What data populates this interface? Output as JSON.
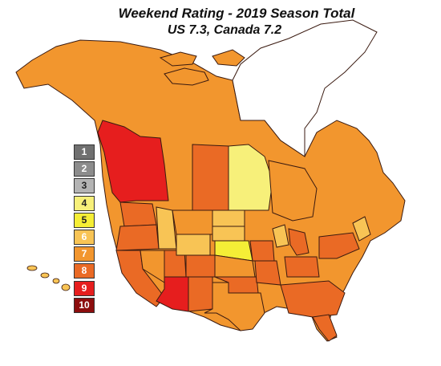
{
  "title": "Weekend Rating - 2019 Season Total",
  "subtitle": "US 7.3, Canada 7.2",
  "colors": {
    "ocean": "#ffffff",
    "border": "#3a1a10",
    "r4": "#f7f07a",
    "r5": "#f5ee36",
    "r6": "#f8c455",
    "r7": "#f2962e",
    "r8": "#ea6a25",
    "r9": "#e61e1e",
    "ice": "#ffffff"
  },
  "legend": [
    {
      "label": "1",
      "color": "#707070",
      "text_color": "#ffffff"
    },
    {
      "label": "2",
      "color": "#8c8c8c",
      "text_color": "#ffffff"
    },
    {
      "label": "3",
      "color": "#b4b4b4",
      "text_color": "#222222"
    },
    {
      "label": "4",
      "color": "#f7f07a",
      "text_color": "#222222"
    },
    {
      "label": "5",
      "color": "#f5ee36",
      "text_color": "#222222"
    },
    {
      "label": "6",
      "color": "#f8c455",
      "text_color": "#ffffff"
    },
    {
      "label": "7",
      "color": "#f2962e",
      "text_color": "#ffffff"
    },
    {
      "label": "8",
      "color": "#ea6a25",
      "text_color": "#ffffff"
    },
    {
      "label": "9",
      "color": "#e61e1e",
      "text_color": "#ffffff"
    },
    {
      "label": "10",
      "color": "#8c0d0d",
      "text_color": "#ffffff"
    }
  ]
}
